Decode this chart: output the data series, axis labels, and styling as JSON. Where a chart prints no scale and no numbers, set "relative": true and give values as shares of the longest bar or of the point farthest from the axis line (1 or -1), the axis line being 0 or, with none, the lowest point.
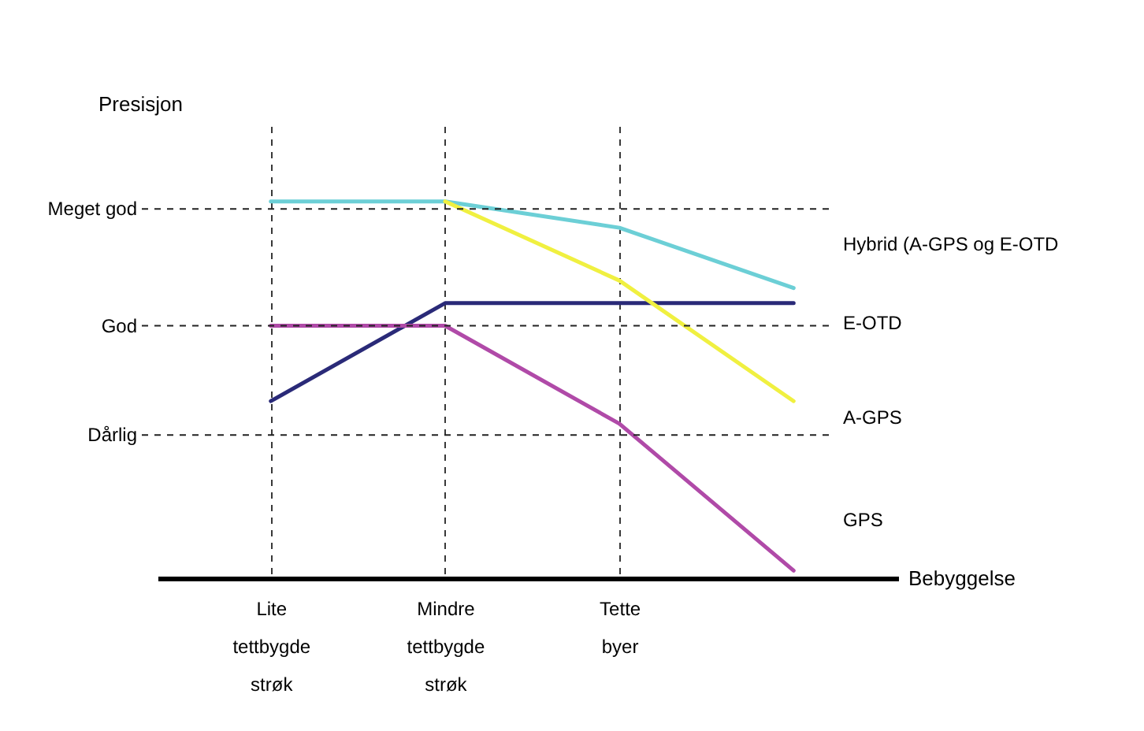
{
  "chart_data": {
    "type": "line",
    "xlabel": "Bebyggelse",
    "ylabel": "Presisjon",
    "relative": true,
    "categories": [
      "Lite tettbygde strøk",
      "Mindre tettbygde strøk",
      "Tette byer",
      null
    ],
    "series": [
      {
        "name": "Hybrid (A-GPS og E-OTD",
        "color": "#6ccfd6",
        "values": [
          1,
          1,
          0.93,
          0.77
        ]
      },
      {
        "name": "E-OTD",
        "color": "#2a2a78",
        "values": [
          0.47,
          0.73,
          0.73,
          0.73
        ]
      },
      {
        "name": "A-GPS",
        "color": "#f0f040",
        "values": [
          null,
          1,
          0.79,
          0.47
        ]
      },
      {
        "name": "GPS",
        "color": "#b04aa8",
        "values": [
          0.67,
          0.67,
          0.41,
          0.02
        ]
      }
    ],
    "ref_lines": [
      {
        "axis": "y",
        "value": 0.98,
        "label": "Meget god",
        "line_style": "dashed"
      },
      {
        "axis": "y",
        "value": 0.67,
        "label": "God",
        "line_style": "dashed"
      },
      {
        "axis": "y",
        "value": 0.38,
        "label": "Dårlig",
        "line_style": "dashed"
      }
    ],
    "grid": "x",
    "marker": "none",
    "line_style": "solid",
    "legend": "right"
  }
}
